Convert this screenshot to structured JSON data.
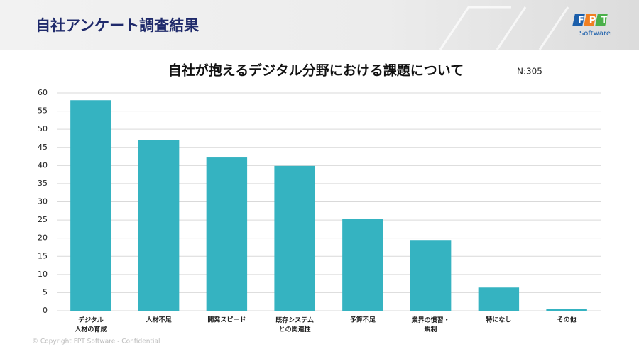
{
  "header": {
    "title": "自社アンケート調査結果",
    "logo": "FPT",
    "logo_sub": "Software"
  },
  "footer": {
    "text": "© Copyright FPT Software - Confidential"
  },
  "chart_data": {
    "type": "bar",
    "title": "自社が抱えるデジタル分野における課題について",
    "subtitle": "N:305",
    "categories": [
      "デジタル\n人材の育成",
      "人材不足",
      "開発スピード",
      "既存システム\nとの関連性",
      "予算不足",
      "業界の慣習・\n規制",
      "特になし",
      "その他"
    ],
    "values": [
      58.0,
      47.1,
      42.4,
      39.9,
      25.4,
      19.5,
      6.4,
      0.5
    ],
    "color": "#35b3c1",
    "ylim": [
      0,
      60
    ],
    "yticks": [
      0,
      5,
      10,
      15,
      20,
      25,
      30,
      35,
      40,
      45,
      50,
      55,
      60
    ],
    "grid": true
  }
}
